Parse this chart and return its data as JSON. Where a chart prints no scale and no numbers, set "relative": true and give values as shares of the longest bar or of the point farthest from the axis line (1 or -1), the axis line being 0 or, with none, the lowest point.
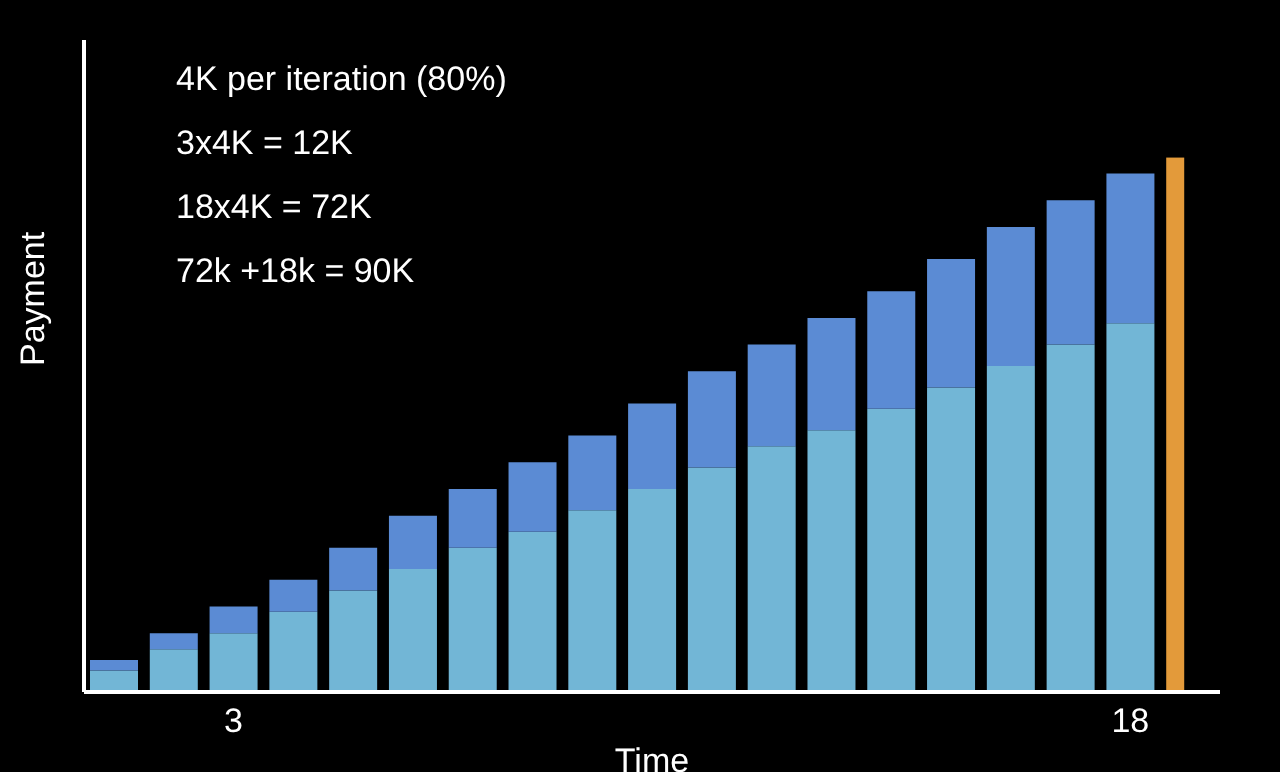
{
  "chart_data": {
    "type": "bar",
    "stacked": true,
    "relative": true,
    "xlabel": "Time",
    "ylabel": "Payment",
    "annotations": [
      "4K per iteration (80%)",
      "3x4K = 12K",
      "18x4K = 72K",
      "72k +18k = 90K"
    ],
    "categories": [
      null,
      null,
      "3",
      null,
      null,
      null,
      null,
      null,
      null,
      null,
      null,
      null,
      null,
      null,
      null,
      null,
      null,
      "18",
      null
    ],
    "series": [
      {
        "color": "#72b6d6",
        "values": [
          0.04,
          0.08,
          0.11,
          0.15,
          0.19,
          0.23,
          0.27,
          0.3,
          0.34,
          0.38,
          0.42,
          0.46,
          0.49,
          0.53,
          0.57,
          0.61,
          0.65,
          0.69,
          null
        ]
      },
      {
        "color": "#5b8bd4",
        "values": [
          0.02,
          0.03,
          0.05,
          0.06,
          0.08,
          0.1,
          0.11,
          0.13,
          0.14,
          0.16,
          0.18,
          0.19,
          0.21,
          0.22,
          0.24,
          0.26,
          0.27,
          0.28,
          null
        ]
      },
      {
        "color": "#e39a3a",
        "values": [
          null,
          null,
          null,
          null,
          null,
          null,
          null,
          null,
          null,
          null,
          null,
          null,
          null,
          null,
          null,
          null,
          null,
          null,
          1
        ]
      }
    ],
    "legend": false,
    "grid": false
  }
}
